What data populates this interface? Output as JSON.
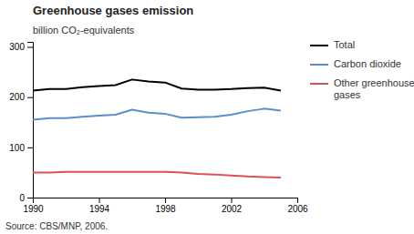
{
  "chart_data": {
    "type": "line",
    "title": "Greenhouse gases emission",
    "ylabel": "billion CO₂-equivalents",
    "source": "Source: CBS/MNP, 2006.",
    "x": [
      1990,
      1991,
      1992,
      1993,
      1994,
      1995,
      1996,
      1997,
      1998,
      1999,
      2000,
      2001,
      2002,
      2003,
      2004,
      2005
    ],
    "series": [
      {
        "name": "Total",
        "color": "#000000",
        "values": [
          213,
          216,
          216,
          220,
          222,
          224,
          235,
          231,
          229,
          217,
          215,
          215,
          216,
          218,
          219,
          213
        ]
      },
      {
        "name": "Carbon dioxide",
        "color": "#5b8fc9",
        "values": [
          155,
          158,
          158,
          161,
          163,
          165,
          175,
          169,
          167,
          159,
          160,
          161,
          165,
          172,
          177,
          173
        ]
      },
      {
        "name": "Other greenhouse\ngases",
        "color": "#e05050",
        "values": [
          50,
          50,
          51,
          51,
          51,
          51,
          51,
          51,
          51,
          50,
          47,
          46,
          44,
          42,
          41,
          40
        ]
      }
    ],
    "xlim": [
      1990,
      2006
    ],
    "xticks": [
      1990,
      1994,
      1998,
      2002,
      2006
    ],
    "ylim": [
      0,
      310
    ],
    "yticks": [
      0,
      100,
      200,
      300
    ],
    "grid": false,
    "legend": "right"
  }
}
